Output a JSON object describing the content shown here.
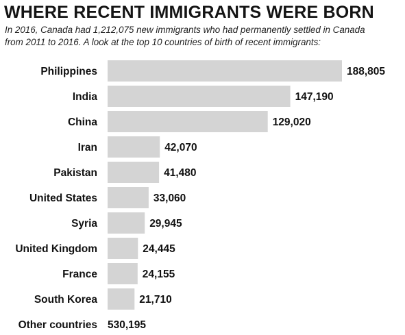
{
  "header": {
    "title": "WHERE RECENT IMMIGRANTS WERE BORN",
    "subtitle": "In 2016, Canada had 1,212,075 new immigrants who had permanently settled in Canada\nfrom 2011 to 2016. A look at the top 10 countries of birth of recent immigrants:"
  },
  "chart_data": {
    "type": "bar",
    "orientation": "horizontal",
    "title": "WHERE RECENT IMMIGRANTS WERE BORN",
    "categories": [
      "Philippines",
      "India",
      "China",
      "Iran",
      "Pakistan",
      "United States",
      "Syria",
      "United Kingdom",
      "France",
      "South Korea"
    ],
    "values": [
      188805,
      147190,
      129020,
      42070,
      41480,
      33060,
      29945,
      24445,
      24155,
      21710
    ],
    "value_labels": [
      "188,805",
      "147,190",
      "129,020",
      "42,070",
      "41,480",
      "33,060",
      "29,945",
      "24,445",
      "24,155",
      "21,710"
    ],
    "bar_color": "#d4d4d4",
    "grid": false,
    "footer_row": {
      "label": "Other countries",
      "value": 530195,
      "value_label": "530,195"
    }
  },
  "colors": {
    "bar": "#d4d4d4",
    "text": "#111111",
    "background": "#ffffff"
  }
}
